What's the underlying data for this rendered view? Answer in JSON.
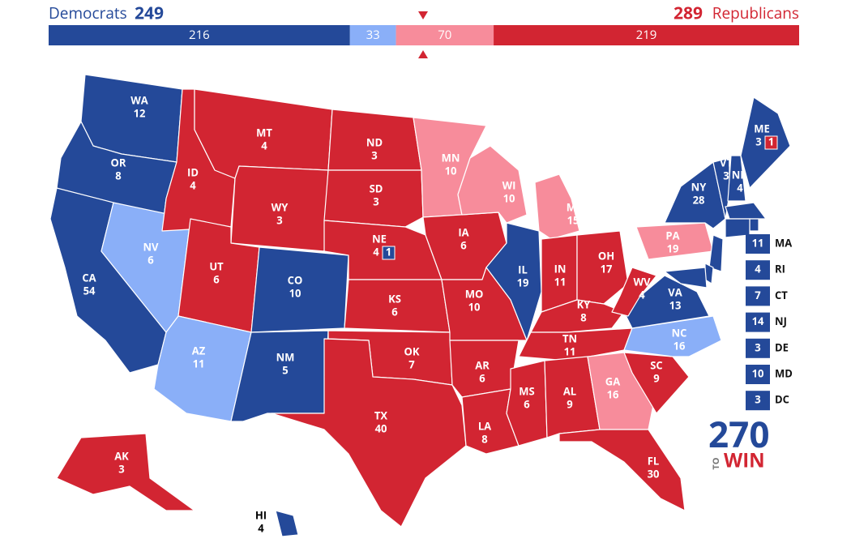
{
  "header": {
    "dem_label": "Democrats",
    "dem_total": 249,
    "rep_total": 289,
    "rep_label": "Republicans"
  },
  "bar": {
    "segments": [
      {
        "votes": 216,
        "color": "#244999"
      },
      {
        "votes": 33,
        "color": "#8aaff8"
      },
      {
        "votes": 70,
        "color": "#f78c9b"
      },
      {
        "votes": 219,
        "color": "#d22532"
      }
    ]
  },
  "states": [
    {
      "abbr": "WA",
      "votes": 12,
      "color": "#244999"
    },
    {
      "abbr": "OR",
      "votes": 8,
      "color": "#244999"
    },
    {
      "abbr": "CA",
      "votes": 54,
      "color": "#244999"
    },
    {
      "abbr": "NV",
      "votes": 6,
      "color": "#8aaff8"
    },
    {
      "abbr": "ID",
      "votes": 4,
      "color": "#d22532"
    },
    {
      "abbr": "MT",
      "votes": 4,
      "color": "#d22532"
    },
    {
      "abbr": "WY",
      "votes": 3,
      "color": "#d22532"
    },
    {
      "abbr": "UT",
      "votes": 6,
      "color": "#d22532"
    },
    {
      "abbr": "AZ",
      "votes": 11,
      "color": "#8aaff8"
    },
    {
      "abbr": "CO",
      "votes": 10,
      "color": "#244999"
    },
    {
      "abbr": "NM",
      "votes": 5,
      "color": "#244999"
    },
    {
      "abbr": "ND",
      "votes": 3,
      "color": "#d22532"
    },
    {
      "abbr": "SD",
      "votes": 3,
      "color": "#d22532"
    },
    {
      "abbr": "NE",
      "votes": 4,
      "color": "#d22532",
      "split": {
        "votes": 1,
        "color": "#244999"
      }
    },
    {
      "abbr": "KS",
      "votes": 6,
      "color": "#d22532"
    },
    {
      "abbr": "OK",
      "votes": 7,
      "color": "#d22532"
    },
    {
      "abbr": "TX",
      "votes": 40,
      "color": "#d22532"
    },
    {
      "abbr": "MN",
      "votes": 10,
      "color": "#f78c9b"
    },
    {
      "abbr": "IA",
      "votes": 6,
      "color": "#d22532"
    },
    {
      "abbr": "MO",
      "votes": 10,
      "color": "#d22532"
    },
    {
      "abbr": "AR",
      "votes": 6,
      "color": "#d22532"
    },
    {
      "abbr": "LA",
      "votes": 8,
      "color": "#d22532"
    },
    {
      "abbr": "WI",
      "votes": 10,
      "color": "#f78c9b"
    },
    {
      "abbr": "IL",
      "votes": 19,
      "color": "#244999"
    },
    {
      "abbr": "MI",
      "votes": 15,
      "color": "#f78c9b"
    },
    {
      "abbr": "IN",
      "votes": 11,
      "color": "#d22532"
    },
    {
      "abbr": "OH",
      "votes": 17,
      "color": "#d22532"
    },
    {
      "abbr": "KY",
      "votes": 8,
      "color": "#d22532"
    },
    {
      "abbr": "TN",
      "votes": 11,
      "color": "#d22532"
    },
    {
      "abbr": "MS",
      "votes": 6,
      "color": "#d22532"
    },
    {
      "abbr": "AL",
      "votes": 9,
      "color": "#d22532"
    },
    {
      "abbr": "GA",
      "votes": 16,
      "color": "#f78c9b"
    },
    {
      "abbr": "FL",
      "votes": 30,
      "color": "#d22532"
    },
    {
      "abbr": "SC",
      "votes": 9,
      "color": "#d22532"
    },
    {
      "abbr": "NC",
      "votes": 16,
      "color": "#8aaff8"
    },
    {
      "abbr": "VA",
      "votes": 13,
      "color": "#244999"
    },
    {
      "abbr": "WV",
      "votes": 4,
      "color": "#d22532"
    },
    {
      "abbr": "PA",
      "votes": 19,
      "color": "#f78c9b"
    },
    {
      "abbr": "NY",
      "votes": 28,
      "color": "#244999"
    },
    {
      "abbr": "VT",
      "votes": 3,
      "color": "#244999"
    },
    {
      "abbr": "NH",
      "votes": 4,
      "color": "#244999"
    },
    {
      "abbr": "ME",
      "votes": 3,
      "color": "#244999",
      "split": {
        "votes": 1,
        "color": "#d22532"
      }
    },
    {
      "abbr": "AK",
      "votes": 3,
      "color": "#d22532"
    },
    {
      "abbr": "HI",
      "votes": 4,
      "color": "#244999"
    }
  ],
  "callouts": [
    {
      "abbr": "MA",
      "votes": 11,
      "color": "#244999"
    },
    {
      "abbr": "RI",
      "votes": 4,
      "color": "#244999"
    },
    {
      "abbr": "CT",
      "votes": 7,
      "color": "#244999"
    },
    {
      "abbr": "NJ",
      "votes": 14,
      "color": "#244999"
    },
    {
      "abbr": "DE",
      "votes": 3,
      "color": "#244999"
    },
    {
      "abbr": "MD",
      "votes": 10,
      "color": "#244999"
    },
    {
      "abbr": "DC",
      "votes": 3,
      "color": "#244999"
    }
  ],
  "logo": {
    "number": "270",
    "to": "TO",
    "win": "WIN"
  }
}
